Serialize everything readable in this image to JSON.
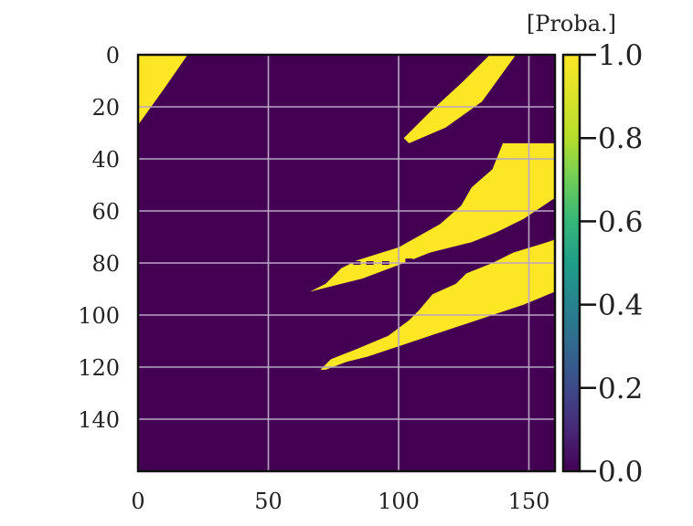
{
  "chart_data": {
    "type": "heatmap",
    "title": "",
    "xlabel": "",
    "ylabel": "",
    "xlim": [
      0,
      160
    ],
    "ylim": [
      160,
      0
    ],
    "x_ticks": [
      0,
      50,
      100,
      150
    ],
    "y_ticks": [
      0,
      20,
      40,
      60,
      80,
      100,
      120,
      140
    ],
    "grid": true,
    "value_range": [
      0.0,
      1.0
    ],
    "colormap": "viridis",
    "colors": {
      "low": "#440154",
      "high": "#fde725",
      "grid": "#b9a6c4"
    },
    "regions": [
      {
        "name": "high-probability-region-1",
        "value": 1.0,
        "polygon": [
          [
            0,
            0
          ],
          [
            19,
            0
          ],
          [
            10,
            13
          ],
          [
            0,
            27
          ]
        ]
      },
      {
        "name": "high-probability-region-2",
        "value": 1.0,
        "polygon": [
          [
            135,
            0
          ],
          [
            145,
            0
          ],
          [
            132,
            18
          ],
          [
            118,
            28
          ],
          [
            104,
            34
          ],
          [
            102,
            32
          ],
          [
            112,
            22
          ],
          [
            125,
            10
          ]
        ]
      },
      {
        "name": "high-probability-region-3",
        "value": 1.0,
        "polygon": [
          [
            140,
            34
          ],
          [
            160,
            34
          ],
          [
            160,
            55
          ],
          [
            148,
            63
          ],
          [
            138,
            68
          ],
          [
            128,
            72
          ],
          [
            112,
            76
          ],
          [
            102,
            80
          ],
          [
            86,
            86
          ],
          [
            66,
            91
          ],
          [
            72,
            88
          ],
          [
            78,
            82
          ],
          [
            84,
            79
          ],
          [
            100,
            74
          ],
          [
            116,
            65
          ],
          [
            124,
            58
          ],
          [
            128,
            51
          ],
          [
            136,
            44
          ]
        ]
      },
      {
        "name": "high-probability-region-4",
        "value": 1.0,
        "polygon": [
          [
            157,
            72
          ],
          [
            160,
            71
          ],
          [
            160,
            91
          ],
          [
            148,
            96
          ],
          [
            136,
            100
          ],
          [
            124,
            104
          ],
          [
            112,
            108
          ],
          [
            100,
            112
          ],
          [
            88,
            116
          ],
          [
            80,
            118
          ],
          [
            72,
            121
          ],
          [
            70,
            121
          ],
          [
            74,
            117
          ],
          [
            84,
            113
          ],
          [
            96,
            108
          ],
          [
            104,
            102
          ],
          [
            108,
            98
          ],
          [
            113,
            92
          ],
          [
            122,
            88
          ],
          [
            126,
            84
          ],
          [
            136,
            80
          ],
          [
            144,
            76
          ]
        ]
      }
    ],
    "dropouts": [
      [
        84,
        80
      ],
      [
        89,
        80
      ],
      [
        95,
        80
      ],
      [
        104,
        79
      ],
      [
        116,
        76
      ]
    ],
    "colorbar": {
      "title": "[Proba.]",
      "ticks": [
        "0.0",
        "0.2",
        "0.4",
        "0.6",
        "0.8",
        "1.0"
      ],
      "tick_values": [
        0.0,
        0.2,
        0.4,
        0.6,
        0.8,
        1.0
      ]
    }
  }
}
